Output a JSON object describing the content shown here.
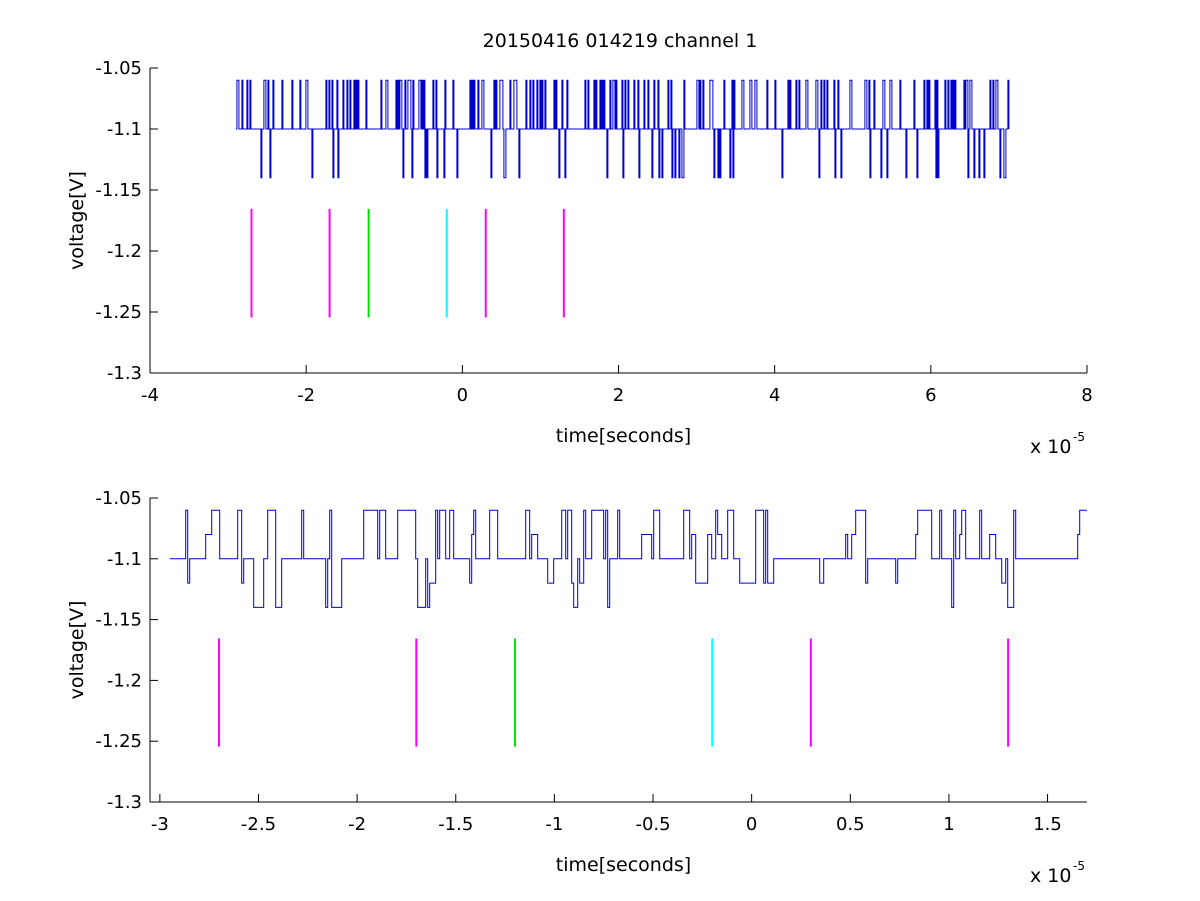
{
  "figure": {
    "title": "20150416 014219 channel 1",
    "background": "#ffffff"
  },
  "colors": {
    "trace": "#0000cc",
    "magenta": "#ff00ff",
    "green": "#00dd00",
    "cyan": "#00ffff"
  },
  "chart_data": [
    {
      "type": "line",
      "title": "20150416 014219 channel 1",
      "xlabel": "time[seconds]",
      "ylabel": "voltage[V]",
      "x_exponent_label": "x 10",
      "x_exponent": "-5",
      "xlim": [
        -4e-05,
        8e-05
      ],
      "ylim": [
        -1.3,
        -1.05
      ],
      "xticks": [
        -4e-05,
        -2e-05,
        0,
        2e-05,
        4e-05,
        6e-05,
        8e-05
      ],
      "xtick_labels": [
        "-4",
        "-2",
        "0",
        "2",
        "4",
        "6",
        "8"
      ],
      "yticks": [
        -1.05,
        -1.1,
        -1.15,
        -1.2,
        -1.25,
        -1.3
      ],
      "ytick_labels": [
        "-1.05",
        "-1.1",
        "-1.15",
        "-1.2",
        "-1.25",
        "-1.3"
      ],
      "grid": false,
      "trace": {
        "color": "#0000cc",
        "x_start": -2.9e-05,
        "x_end": 7e-05,
        "baseline": -1.1,
        "levels": [
          -1.06,
          -1.14
        ]
      },
      "markers": [
        {
          "x": -2.7e-05,
          "color": "magenta",
          "y_from": -1.2545,
          "y_to": -1.1655
        },
        {
          "x": -1.7e-05,
          "color": "magenta",
          "y_from": -1.2545,
          "y_to": -1.1655
        },
        {
          "x": -1.2e-05,
          "color": "green",
          "y_from": -1.2545,
          "y_to": -1.1655
        },
        {
          "x": -2e-06,
          "color": "cyan",
          "y_from": -1.2545,
          "y_to": -1.1655
        },
        {
          "x": 3e-06,
          "color": "magenta",
          "y_from": -1.2545,
          "y_to": -1.1655
        },
        {
          "x": 1.3e-05,
          "color": "magenta",
          "y_from": -1.2545,
          "y_to": -1.1655
        }
      ]
    },
    {
      "type": "line",
      "xlabel": "time[seconds]",
      "ylabel": "voltage[V]",
      "x_exponent_label": "x 10",
      "x_exponent": "-5",
      "xlim": [
        -3.05e-05,
        1.7e-05
      ],
      "ylim": [
        -1.3,
        -1.05
      ],
      "xticks": [
        -3e-05,
        -2.5e-05,
        -2e-05,
        -1.5e-05,
        -1e-05,
        -5e-06,
        0,
        5e-06,
        1e-05,
        1.5e-05
      ],
      "xtick_labels": [
        "-3",
        "-2.5",
        "-2",
        "-1.5",
        "-1",
        "-0.5",
        "0",
        "0.5",
        "1",
        "1.5"
      ],
      "yticks": [
        -1.05,
        -1.1,
        -1.15,
        -1.2,
        -1.25,
        -1.3
      ],
      "ytick_labels": [
        "-1.05",
        "-1.1",
        "-1.15",
        "-1.2",
        "-1.25",
        "-1.3"
      ],
      "grid": false,
      "trace": {
        "color": "#0000cc",
        "x_start": -2.95e-05,
        "x_end": 1.7e-05,
        "baseline": -1.1,
        "levels": [
          -1.06,
          -1.08,
          -1.12,
          -1.14
        ]
      },
      "markers": [
        {
          "x": -2.7e-05,
          "color": "magenta",
          "y_from": -1.2545,
          "y_to": -1.1655
        },
        {
          "x": -1.7e-05,
          "color": "magenta",
          "y_from": -1.2545,
          "y_to": -1.1655
        },
        {
          "x": -1.2e-05,
          "color": "green",
          "y_from": -1.2545,
          "y_to": -1.1655
        },
        {
          "x": -2e-06,
          "color": "cyan",
          "y_from": -1.2545,
          "y_to": -1.1655
        },
        {
          "x": 3e-06,
          "color": "magenta",
          "y_from": -1.2545,
          "y_to": -1.1655
        },
        {
          "x": 1.3e-05,
          "color": "magenta",
          "y_from": -1.2545,
          "y_to": -1.1655
        }
      ]
    }
  ]
}
